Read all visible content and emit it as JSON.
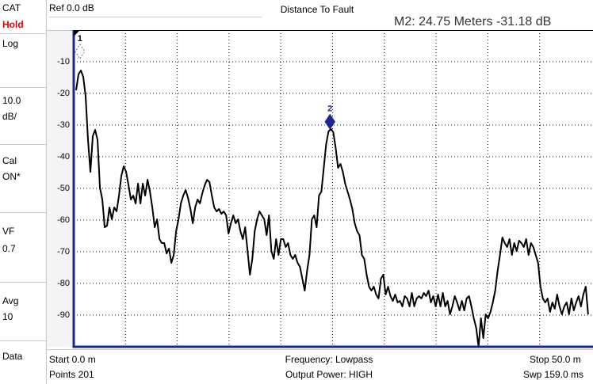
{
  "sidebar": [
    {
      "text": "CAT"
    },
    {
      "text": "Hold",
      "color": "#e00000"
    },
    {
      "text": "Log"
    },
    {
      "text": "10.0"
    },
    {
      "text": "dB/"
    },
    {
      "text": "Cal"
    },
    {
      "text": "ON*"
    },
    {
      "text": "VF"
    },
    {
      "text": "0.7"
    },
    {
      "text": "Avg"
    },
    {
      "text": "10"
    },
    {
      "text": "Data"
    }
  ],
  "header": {
    "reference": "Ref 0.0 dB",
    "title": "Distance To Fault",
    "marker_readout": "M2:  24.75 Meters  -31.18 dB"
  },
  "footer": {
    "start": "Start 0.0 m",
    "points": "Points 201",
    "frequency": "Frequency: Lowpass",
    "power": "Output Power: HIGH",
    "stop": "Stop 50.0 m",
    "sweep": "Swp 159.0 ms"
  },
  "chart_data": {
    "type": "line",
    "x": [
      0.23,
      0.46,
      0.69,
      0.92,
      1.15,
      1.38,
      1.61,
      1.84,
      2.07,
      2.3,
      2.53,
      2.76,
      2.99,
      3.22,
      3.45,
      3.68,
      3.91,
      4.14,
      4.37,
      4.6,
      4.83,
      5.06,
      5.29,
      5.52,
      5.75,
      5.98,
      6.21,
      6.44,
      6.67,
      6.9,
      7.13,
      7.36,
      7.59,
      7.82,
      8.05,
      8.28,
      8.51,
      8.74,
      8.97,
      9.2,
      9.43,
      9.66,
      9.89,
      10.12,
      10.35,
      10.58,
      10.81,
      11.04,
      11.27,
      11.5,
      11.73,
      11.96,
      12.19,
      12.42,
      12.65,
      12.88,
      13.11,
      13.34,
      13.57,
      13.8,
      14.03,
      14.26,
      14.49,
      14.72,
      14.95,
      15.18,
      15.41,
      15.64,
      15.87,
      16.1,
      16.33,
      16.56,
      16.79,
      17.02,
      17.25,
      17.48,
      17.71,
      17.94,
      18.17,
      18.4,
      18.63,
      18.86,
      19.09,
      19.32,
      19.55,
      19.78,
      20.01,
      20.24,
      20.47,
      20.7,
      20.93,
      21.16,
      21.39,
      21.62,
      21.85,
      22.08,
      22.31,
      22.54,
      22.77,
      23,
      23.23,
      23.46,
      23.69,
      23.92,
      24.15,
      24.38,
      24.61,
      24.84,
      25.07,
      25.3,
      25.53,
      25.76,
      25.99,
      26.22,
      26.45,
      26.68,
      26.91,
      27.14,
      27.37,
      27.6,
      27.83,
      28.06,
      28.29,
      28.52,
      28.75,
      28.98,
      29.21,
      29.44,
      29.67,
      29.9,
      30.13,
      30.36,
      30.59,
      30.82,
      31.05,
      31.28,
      31.51,
      31.74,
      31.97,
      32.2,
      32.43,
      32.66,
      32.89,
      33.12,
      33.35,
      33.58,
      33.81,
      34.04,
      34.27,
      34.5,
      34.73,
      34.96,
      35.19,
      35.42,
      35.65,
      35.88,
      36.11,
      36.34,
      36.57,
      36.8,
      37.03,
      37.26,
      37.49,
      37.72,
      37.95,
      38.18,
      38.41,
      38.64,
      38.87,
      39.1,
      39.33,
      39.56,
      39.79,
      40.02,
      40.25,
      40.48,
      40.71,
      40.94,
      41.17,
      41.4,
      41.63,
      41.86,
      42.09,
      42.32,
      42.55,
      42.78,
      43.01,
      43.24,
      43.47,
      43.7,
      43.93,
      44.16,
      44.39,
      44.62,
      44.85,
      45.08,
      45.31,
      45.54,
      45.77,
      46,
      46.23,
      46.46,
      46.69,
      46.92,
      47.15,
      47.38,
      47.61,
      47.84,
      48.07,
      48.3,
      48.53,
      48.76,
      48.99,
      49.22,
      49.45,
      49.68
    ],
    "series": [
      {
        "color": "#000000",
        "values": [
          -19,
          -14,
          -12.75,
          -14.75,
          -21,
          -34.75,
          -44.75,
          -33.5,
          -31.5,
          -34.75,
          -49.75,
          -53.5,
          -62.25,
          -61.75,
          -56,
          -59.75,
          -56,
          -57.25,
          -52.25,
          -46,
          -43,
          -44.75,
          -49,
          -53.5,
          -52.25,
          -54.75,
          -48.5,
          -54.75,
          -48.5,
          -52.25,
          -47.25,
          -51,
          -56,
          -62.25,
          -59.75,
          -66,
          -67.25,
          -67.25,
          -70.5,
          -69,
          -73.5,
          -71,
          -63.5,
          -59.75,
          -54.75,
          -52.25,
          -50.5,
          -53,
          -56.5,
          -61,
          -56,
          -53.5,
          -54.75,
          -51.5,
          -49,
          -47.25,
          -48,
          -52.25,
          -56,
          -57.25,
          -56.5,
          -58,
          -57.25,
          -58.5,
          -64.25,
          -61,
          -58.5,
          -61,
          -59.75,
          -63.5,
          -66,
          -62.25,
          -69.75,
          -77.25,
          -72.25,
          -63.5,
          -59.75,
          -57.25,
          -58.5,
          -59.75,
          -64.75,
          -58.5,
          -69.75,
          -72.25,
          -66,
          -71,
          -66,
          -66,
          -68.5,
          -67.25,
          -71,
          -72.25,
          -71,
          -73.5,
          -74.75,
          -78.5,
          -82.25,
          -76,
          -71,
          -59.75,
          -58.5,
          -62.25,
          -52.25,
          -51,
          -43.5,
          -36,
          -32,
          -31.25,
          -32.25,
          -37.25,
          -43.5,
          -42.25,
          -44.75,
          -48.5,
          -51,
          -53.5,
          -56.5,
          -61,
          -63.5,
          -64.75,
          -71,
          -72.25,
          -77.25,
          -81,
          -82.25,
          -81,
          -83.5,
          -84.75,
          -78.5,
          -77.25,
          -83.5,
          -81,
          -84,
          -85.5,
          -83.5,
          -86,
          -85.5,
          -87.25,
          -84,
          -84.75,
          -87.25,
          -83,
          -87.25,
          -84.75,
          -84,
          -84.75,
          -83,
          -84,
          -82.25,
          -86,
          -84,
          -87.25,
          -83.5,
          -87.25,
          -83,
          -87.25,
          -85.5,
          -89.75,
          -87.25,
          -84,
          -86,
          -88.5,
          -85.5,
          -88.5,
          -84.75,
          -84,
          -87.25,
          -91,
          -94,
          -100,
          -91,
          -97.25,
          -89.75,
          -91,
          -89,
          -86,
          -82.25,
          -76,
          -71,
          -65.5,
          -67.25,
          -68.5,
          -66,
          -71,
          -67.25,
          -69.75,
          -66.5,
          -67.25,
          -68.5,
          -66,
          -71,
          -67.25,
          -68.5,
          -71,
          -73.5,
          -81,
          -84.75,
          -86,
          -84.75,
          -89,
          -86,
          -88,
          -83.5,
          -87.25,
          -89.75,
          -87.25,
          -86,
          -89.75,
          -84.75,
          -88.5,
          -86,
          -84,
          -87.25,
          -83.5,
          -81,
          -89.75
        ]
      }
    ],
    "xlim": [
      0,
      50
    ],
    "ylim": [
      -100,
      0
    ],
    "xticks": [
      5,
      10,
      15,
      20,
      25,
      30,
      35,
      40,
      45
    ],
    "yticks": [
      -90,
      -80,
      -70,
      -60,
      -50,
      -40,
      -30,
      -20,
      -10
    ],
    "grid": true,
    "markers": [
      {
        "label": "1",
        "x": 0.6,
        "y": -9,
        "color": "#888888",
        "filled": false
      },
      {
        "label": "2",
        "x": 24.75,
        "y": -31.18,
        "color": "#1a2a8c",
        "filled": true
      }
    ]
  }
}
